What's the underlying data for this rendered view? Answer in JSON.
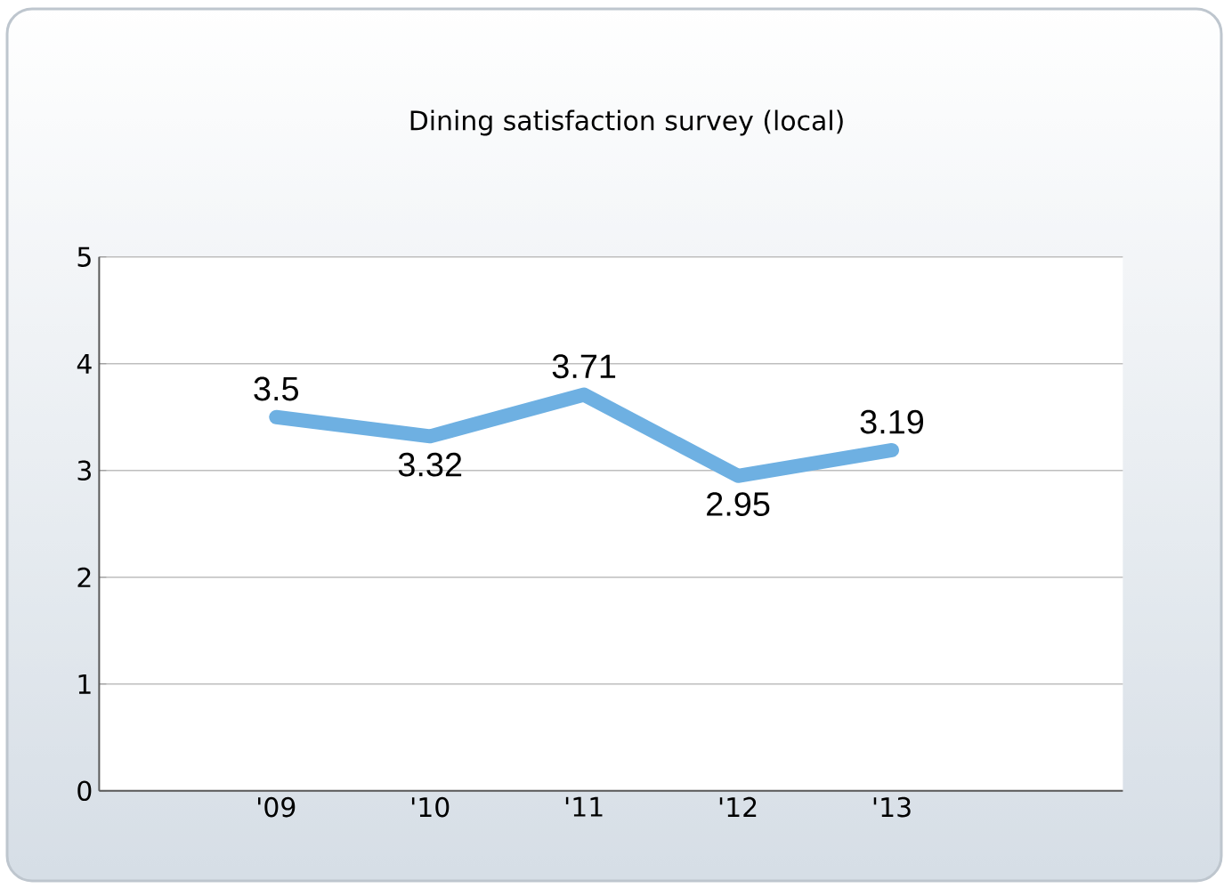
{
  "chart_data": {
    "type": "line",
    "title": "Dining satisfaction survey (local)",
    "categories": [
      "'09",
      "'10",
      "'11",
      "'12",
      "'13"
    ],
    "values": [
      3.5,
      3.32,
      3.71,
      2.95,
      3.19
    ],
    "color": "#6eb0e2",
    "ylim": [
      0,
      5
    ],
    "yticks": [
      0,
      1,
      2,
      3,
      4,
      5
    ],
    "grid": "y",
    "data_labels": true,
    "marker": "none"
  }
}
